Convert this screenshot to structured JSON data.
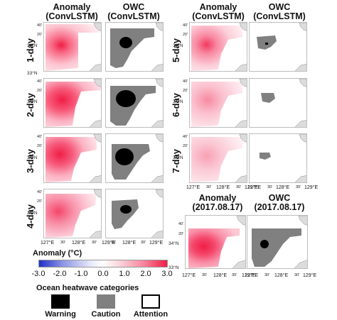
{
  "headers": {
    "anomaly_title": "Anomaly",
    "anomaly_sub": "(ConvLSTM)",
    "owc_title": "OWC",
    "owc_sub": "(ConvLSTM)",
    "obs_anomaly_title": "Anomaly",
    "obs_anomaly_sub": "(2017.08.17)",
    "obs_owc_title": "OWC",
    "obs_owc_sub": "(2017.08.17)"
  },
  "row_labels": [
    "1-day",
    "2-day",
    "3-day",
    "4-day",
    "5-day",
    "6-day",
    "7-day"
  ],
  "lat_ticks": {
    "top_small": "40'",
    "mid_small": "20'",
    "main": "34°N",
    "bottom": "33°N"
  },
  "lon_ticks": [
    "127°E",
    "30'",
    "128°E",
    "30'",
    "129°E"
  ],
  "colorbar": {
    "label": "Anomaly (°C)",
    "ticks": [
      "-3.0",
      "-2.0",
      "-1.0",
      "0.0",
      "1.0",
      "2.0",
      "3.0"
    ],
    "low_color": "#2030c8",
    "mid_color": "#ffffff",
    "high_color": "#f01e46"
  },
  "categories": {
    "title": "Ocean heatwave categories",
    "items": [
      {
        "label": "Warning",
        "color": "#000000"
      },
      {
        "label": "Caution",
        "color": "#808080"
      },
      {
        "label": "Attention",
        "color": "#ffffff"
      }
    ]
  }
}
